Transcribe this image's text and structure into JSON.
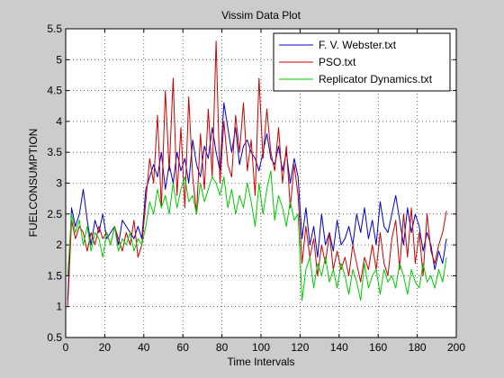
{
  "window": {
    "background": "#cccccc"
  },
  "chart_data": {
    "type": "line",
    "title": "Vissim Data Plot",
    "xlabel": "Time Intervals",
    "ylabel": "FUELCONSUMPTION",
    "xlim": [
      0,
      200
    ],
    "ylim": [
      0.5,
      5.5
    ],
    "xticks": [
      0,
      20,
      40,
      60,
      80,
      100,
      120,
      140,
      160,
      180,
      200
    ],
    "yticks": [
      0.5,
      1,
      1.5,
      2,
      2.5,
      3,
      3.5,
      4,
      4.5,
      5,
      5.5
    ],
    "xtick_labels": [
      "0",
      "20",
      "40",
      "60",
      "80",
      "100",
      "120",
      "140",
      "160",
      "180",
      "200"
    ],
    "ytick_labels": [
      "0.5",
      "1",
      "1.5",
      "2",
      "2.5",
      "3",
      "3.5",
      "4",
      "4.5",
      "5",
      "5.5"
    ],
    "grid": true,
    "legend": {
      "placement": "top-right"
    },
    "series": [
      {
        "name": "F. V. Webster.txt",
        "color": "#0000cc",
        "x": [
          1,
          3,
          5,
          7,
          9,
          11,
          13,
          15,
          17,
          19,
          21,
          23,
          25,
          27,
          29,
          31,
          33,
          35,
          37,
          39,
          41,
          43,
          45,
          47,
          49,
          51,
          53,
          55,
          57,
          59,
          61,
          63,
          65,
          67,
          69,
          71,
          73,
          75,
          77,
          79,
          81,
          83,
          85,
          87,
          89,
          91,
          93,
          95,
          97,
          99,
          101,
          103,
          105,
          107,
          109,
          111,
          113,
          115,
          117,
          119,
          121,
          123,
          125,
          127,
          129,
          131,
          133,
          135,
          137,
          139,
          141,
          143,
          145,
          147,
          149,
          151,
          153,
          155,
          157,
          159,
          161,
          163,
          165,
          167,
          169,
          171,
          173,
          175,
          177,
          179,
          181,
          183,
          185,
          187,
          189,
          191,
          193,
          195
        ],
        "y": [
          1.1,
          2.6,
          2.3,
          2.5,
          2.9,
          2.4,
          2.0,
          2.4,
          2.2,
          2.5,
          2.1,
          2.2,
          2.3,
          2.0,
          2.4,
          2.3,
          2.2,
          2.1,
          2.3,
          2.1,
          2.9,
          3.1,
          3.3,
          3.1,
          3.5,
          2.9,
          3.3,
          3.0,
          3.5,
          3.2,
          3.4,
          3.0,
          3.7,
          3.3,
          3.1,
          3.6,
          3.4,
          3.9,
          3.5,
          3.2,
          4.3,
          3.9,
          3.5,
          3.9,
          3.3,
          3.6,
          3.7,
          3.5,
          3.4,
          3.2,
          3.5,
          3.8,
          3.4,
          3.3,
          3.6,
          3.2,
          3.5,
          3.0,
          3.4,
          3.1,
          2.1,
          2.6,
          2.0,
          2.3,
          1.8,
          2.5,
          2.0,
          2.2,
          1.9,
          2.4,
          2.0,
          2.1,
          2.3,
          2.0,
          2.5,
          2.2,
          2.6,
          2.1,
          2.4,
          2.0,
          2.7,
          2.3,
          2.2,
          2.5,
          2.8,
          2.4,
          2.0,
          2.6,
          2.2,
          2.5,
          2.3,
          1.9,
          2.2,
          2.0,
          1.6,
          1.9,
          1.7,
          2.1
        ]
      },
      {
        "name": "PSO.txt",
        "color": "#cc0000",
        "x": [
          1,
          3,
          5,
          7,
          9,
          11,
          13,
          15,
          17,
          19,
          21,
          23,
          25,
          27,
          29,
          31,
          33,
          35,
          37,
          39,
          41,
          43,
          45,
          47,
          49,
          51,
          53,
          55,
          57,
          59,
          61,
          63,
          65,
          67,
          69,
          71,
          73,
          75,
          77,
          79,
          81,
          83,
          85,
          87,
          89,
          91,
          93,
          95,
          97,
          99,
          101,
          103,
          105,
          107,
          109,
          111,
          113,
          115,
          117,
          119,
          121,
          123,
          125,
          127,
          129,
          131,
          133,
          135,
          137,
          139,
          141,
          143,
          145,
          147,
          149,
          151,
          153,
          155,
          157,
          159,
          161,
          163,
          165,
          167,
          169,
          171,
          173,
          175,
          177,
          179,
          181,
          183,
          185,
          187,
          189,
          191,
          193,
          195
        ],
        "y": [
          1.0,
          2.4,
          2.1,
          2.3,
          2.2,
          1.9,
          2.2,
          2.0,
          2.3,
          2.1,
          2.2,
          2.0,
          2.3,
          2.1,
          1.9,
          2.2,
          2.0,
          2.4,
          1.8,
          2.0,
          2.7,
          3.4,
          3.0,
          4.1,
          2.6,
          4.5,
          3.2,
          4.7,
          2.8,
          3.9,
          2.6,
          4.4,
          3.1,
          2.5,
          3.8,
          2.9,
          4.2,
          3.1,
          5.3,
          3.0,
          4.0,
          3.3,
          3.1,
          4.1,
          3.5,
          4.3,
          3.2,
          3.7,
          2.8,
          4.7,
          3.4,
          4.2,
          3.5,
          3.2,
          3.9,
          3.0,
          3.6,
          2.6,
          3.3,
          2.8,
          1.7,
          2.3,
          1.8,
          2.1,
          1.5,
          2.0,
          1.7,
          2.2,
          1.6,
          1.9,
          1.6,
          1.8,
          1.5,
          2.0,
          1.7,
          1.4,
          1.8,
          1.6,
          2.0,
          1.6,
          2.2,
          1.7,
          1.5,
          2.1,
          2.4,
          1.6,
          2.5,
          1.8,
          2.6,
          1.7,
          2.2,
          1.5,
          2.5,
          1.9,
          1.7,
          2.0,
          2.2,
          2.55
        ]
      },
      {
        "name": "Replicator Dynamics.txt",
        "color": "#00cc00",
        "x": [
          1,
          3,
          5,
          7,
          9,
          11,
          13,
          15,
          17,
          19,
          21,
          23,
          25,
          27,
          29,
          31,
          33,
          35,
          37,
          39,
          41,
          43,
          45,
          47,
          49,
          51,
          53,
          55,
          57,
          59,
          61,
          63,
          65,
          67,
          69,
          71,
          73,
          75,
          77,
          79,
          81,
          83,
          85,
          87,
          89,
          91,
          93,
          95,
          97,
          99,
          101,
          103,
          105,
          107,
          109,
          111,
          113,
          115,
          117,
          119,
          121,
          123,
          125,
          127,
          129,
          131,
          133,
          135,
          137,
          139,
          141,
          143,
          145,
          147,
          149,
          151,
          153,
          155,
          157,
          159,
          161,
          163,
          165,
          167,
          169,
          171,
          173,
          175,
          177,
          179,
          181,
          183,
          185,
          187,
          189,
          191,
          193,
          195
        ],
        "y": [
          1.5,
          2.5,
          2.2,
          2.4,
          2.0,
          2.3,
          1.9,
          2.2,
          2.1,
          1.8,
          2.2,
          2.0,
          2.3,
          1.9,
          2.1,
          2.0,
          2.2,
          1.9,
          2.1,
          2.0,
          2.3,
          2.7,
          2.5,
          2.9,
          2.6,
          2.8,
          2.5,
          3.0,
          2.6,
          2.9,
          3.1,
          2.7,
          2.8,
          2.5,
          3.0,
          2.7,
          2.9,
          3.1,
          3.0,
          2.8,
          3.1,
          2.6,
          2.9,
          2.5,
          2.8,
          2.6,
          3.0,
          2.7,
          2.3,
          3.0,
          2.5,
          2.9,
          3.2,
          2.4,
          2.8,
          2.6,
          2.3,
          2.7,
          2.4,
          2.5,
          1.1,
          1.6,
          1.8,
          1.3,
          1.7,
          1.5,
          1.8,
          1.4,
          1.6,
          1.3,
          1.7,
          1.5,
          1.2,
          1.6,
          1.4,
          1.1,
          1.7,
          1.3,
          1.5,
          1.6,
          1.2,
          1.6,
          1.4,
          1.5,
          1.3,
          1.7,
          1.5,
          1.2,
          1.6,
          1.4,
          1.3,
          1.7,
          1.4,
          1.5,
          1.3,
          1.6,
          1.4,
          1.8
        ]
      }
    ]
  }
}
